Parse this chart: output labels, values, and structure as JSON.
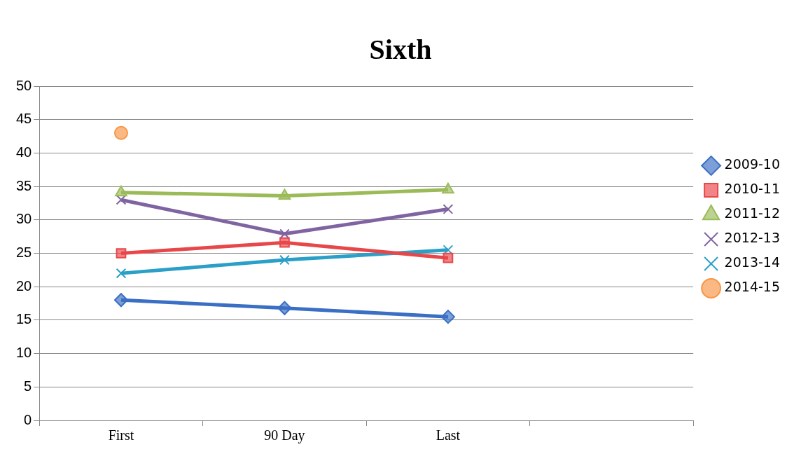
{
  "chart_data": {
    "type": "line",
    "title": "Sixth",
    "categories": [
      "First",
      "90 Day",
      "Last",
      null
    ],
    "series": [
      {
        "name": "2009-10",
        "color": "#3a6fc4",
        "marker": "diamond",
        "values": [
          18,
          16.8,
          15.5,
          null
        ]
      },
      {
        "name": "2010-11",
        "color": "#e8474a",
        "marker": "square",
        "values": [
          25,
          26.6,
          24.3,
          null
        ]
      },
      {
        "name": "2011-12",
        "color": "#9bbb59",
        "marker": "triangle",
        "values": [
          34.1,
          33.6,
          34.5,
          null
        ]
      },
      {
        "name": "2012-13",
        "color": "#8064a2",
        "marker": "cross",
        "values": [
          33,
          27.9,
          31.6,
          null
        ]
      },
      {
        "name": "2013-14",
        "color": "#2a9fc7",
        "marker": "cross",
        "values": [
          22,
          24,
          25.5,
          null
        ]
      },
      {
        "name": "2014-15",
        "color": "#f79646",
        "marker": "circle",
        "values": [
          43,
          null,
          null,
          null
        ]
      }
    ],
    "ylim": [
      0,
      50
    ],
    "yticks": [
      0,
      5,
      10,
      15,
      20,
      25,
      30,
      35,
      40,
      45,
      50
    ],
    "grid": "y",
    "legend": "right"
  }
}
